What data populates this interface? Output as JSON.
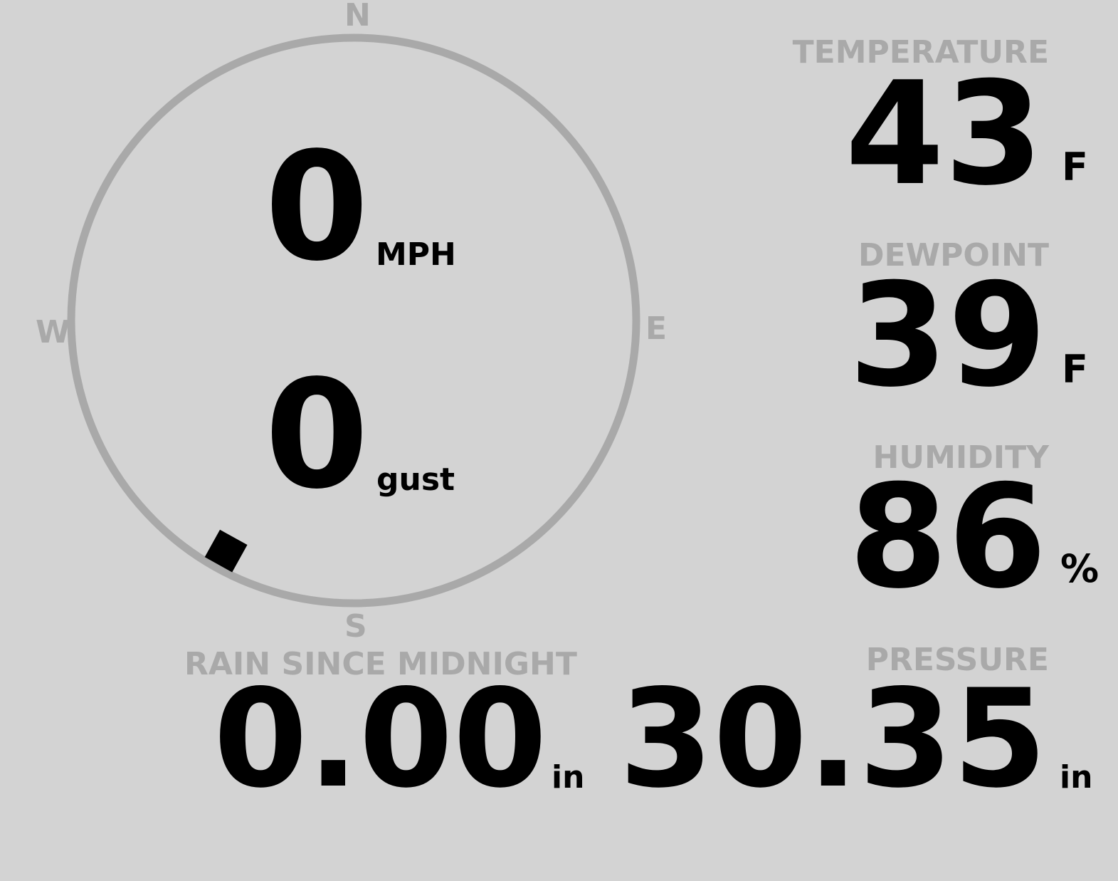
{
  "wind": {
    "compass": {
      "n": "N",
      "e": "E",
      "s": "S",
      "w": "W"
    },
    "speed": "0",
    "speed_unit": "MPH",
    "gust": "0",
    "gust_unit": "gust",
    "direction_degrees": 209
  },
  "temperature": {
    "label": "TEMPERATURE",
    "value": "43",
    "unit": "F"
  },
  "dewpoint": {
    "label": "DEWPOINT",
    "value": "39",
    "unit": "F"
  },
  "humidity": {
    "label": "HUMIDITY",
    "value": "86",
    "unit": "%"
  },
  "rain": {
    "label": "RAIN SINCE MIDNIGHT",
    "value": "0.00",
    "unit": "in"
  },
  "pressure": {
    "label": "PRESSURE",
    "value": "30.35",
    "unit": "in"
  },
  "colors": {
    "background": "#d3d3d3",
    "dim": "#a9a9a9",
    "text": "#000000"
  }
}
